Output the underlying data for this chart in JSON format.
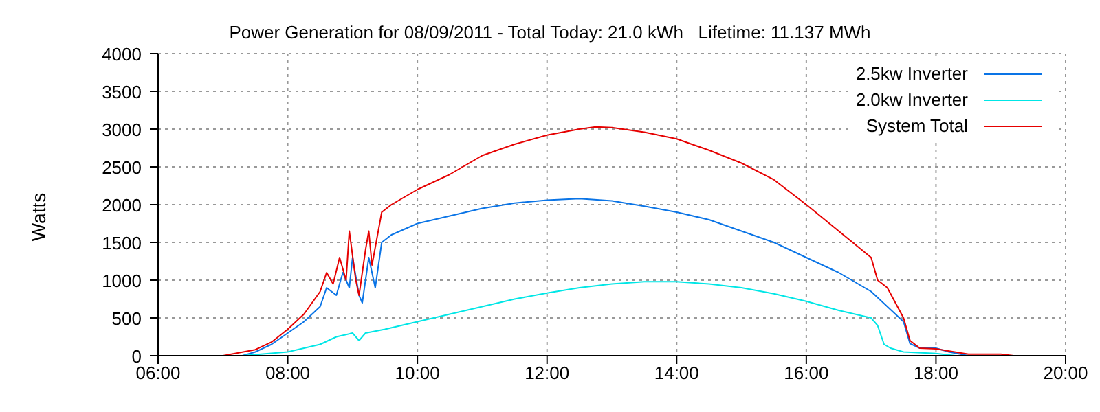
{
  "chart_data": {
    "type": "line",
    "title": "Power Generation for 08/09/2011 - Total Today: 21.0 kWh   Lifetime: 11.137 MWh",
    "ylabel": "Watts",
    "xlim": [
      6,
      20
    ],
    "xticks": [
      {
        "value": 6,
        "label": "06:00"
      },
      {
        "value": 8,
        "label": "08:00"
      },
      {
        "value": 10,
        "label": "10:00"
      },
      {
        "value": 12,
        "label": "12:00"
      },
      {
        "value": 14,
        "label": "14:00"
      },
      {
        "value": 16,
        "label": "16:00"
      },
      {
        "value": 18,
        "label": "18:00"
      },
      {
        "value": 20,
        "label": "20:00"
      }
    ],
    "ylim": [
      0,
      4000
    ],
    "yticks": [
      0,
      500,
      1000,
      1500,
      2000,
      2500,
      3000,
      3500,
      4000
    ],
    "grid": true,
    "legend": "top right",
    "marker": "none",
    "line_style": "solid",
    "series": [
      {
        "name": "2.5kw Inverter",
        "color": "#0a74e6",
        "x": [
          7.0,
          7.3,
          7.5,
          7.75,
          8.0,
          8.25,
          8.5,
          8.6,
          8.75,
          8.85,
          8.95,
          9.0,
          9.1,
          9.15,
          9.25,
          9.35,
          9.45,
          9.6,
          10,
          10.5,
          11,
          11.5,
          12,
          12.5,
          13,
          13.5,
          14,
          14.5,
          15,
          15.5,
          16,
          16.5,
          17,
          17.25,
          17.5,
          17.6,
          17.75,
          18,
          18.2,
          18.5
        ],
        "values": [
          0,
          0,
          50,
          150,
          300,
          450,
          650,
          900,
          800,
          1100,
          900,
          1300,
          800,
          700,
          1300,
          900,
          1500,
          1600,
          1750,
          1850,
          1950,
          2020,
          2060,
          2080,
          2050,
          1980,
          1900,
          1800,
          1650,
          1500,
          1300,
          1100,
          850,
          650,
          450,
          160,
          100,
          100,
          50,
          0
        ]
      },
      {
        "name": "2.0kw Inverter",
        "color": "#00e6e6",
        "x": [
          7.3,
          8,
          8.5,
          8.75,
          9.0,
          9.1,
          9.2,
          9.5,
          10,
          10.5,
          11,
          11.5,
          12,
          12.5,
          13,
          13.5,
          14,
          14.5,
          15,
          15.5,
          16,
          16.5,
          17,
          17.1,
          17.2,
          17.3,
          17.5,
          18,
          18.3
        ],
        "values": [
          0,
          50,
          150,
          250,
          300,
          200,
          300,
          350,
          450,
          550,
          650,
          750,
          830,
          900,
          950,
          980,
          980,
          950,
          900,
          820,
          720,
          600,
          500,
          400,
          150,
          100,
          50,
          30,
          0
        ]
      },
      {
        "name": "System Total",
        "color": "#e60000",
        "x": [
          7.0,
          7.5,
          7.75,
          8.0,
          8.25,
          8.5,
          8.6,
          8.7,
          8.8,
          8.9,
          8.95,
          9.05,
          9.1,
          9.2,
          9.25,
          9.3,
          9.45,
          9.6,
          10,
          10.5,
          11,
          11.5,
          12,
          12.5,
          12.75,
          13,
          13.5,
          14,
          14.5,
          15,
          15.5,
          16,
          16.5,
          17,
          17.1,
          17.25,
          17.5,
          17.6,
          17.75,
          18,
          18.5,
          19,
          19.2
        ],
        "values": [
          0,
          80,
          180,
          350,
          550,
          850,
          1100,
          950,
          1300,
          1000,
          1650,
          1000,
          800,
          1400,
          1650,
          1200,
          1900,
          2000,
          2200,
          2400,
          2650,
          2800,
          2920,
          3000,
          3030,
          3020,
          2960,
          2870,
          2720,
          2550,
          2330,
          2000,
          1650,
          1300,
          1000,
          900,
          500,
          200,
          100,
          90,
          20,
          20,
          0
        ]
      }
    ]
  }
}
